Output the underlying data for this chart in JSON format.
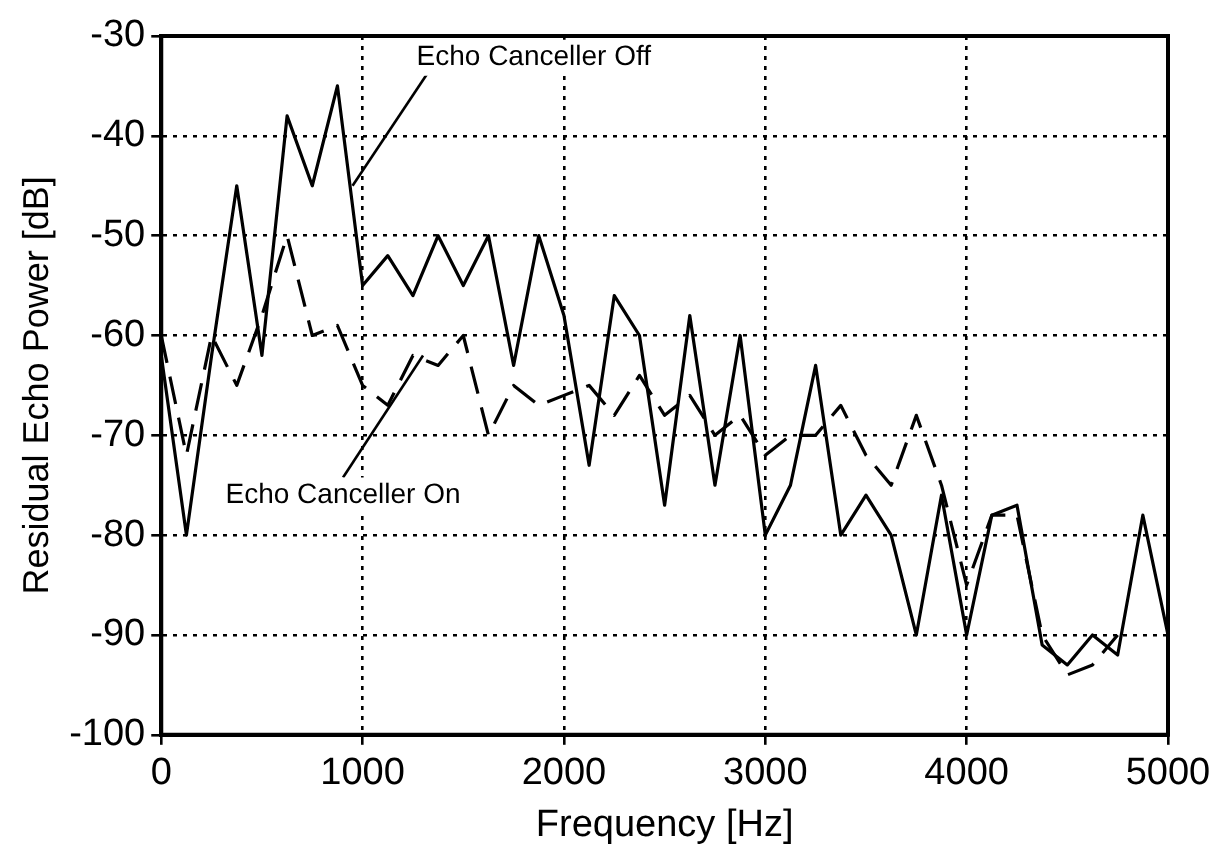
{
  "chart_data": {
    "type": "line",
    "xlabel": "Frequency [Hz]",
    "ylabel": "Residual Echo Power [dB]",
    "x": [
      0,
      125,
      250,
      375,
      500,
      625,
      750,
      875,
      1000,
      1125,
      1250,
      1375,
      1500,
      1625,
      1750,
      1875,
      2000,
      2125,
      2250,
      2375,
      2500,
      2625,
      2750,
      2875,
      3000,
      3125,
      3250,
      3375,
      3500,
      3625,
      3750,
      3875,
      4000,
      4125,
      4250,
      4375,
      4500,
      4625,
      4750,
      4875,
      5000
    ],
    "series": [
      {
        "color": "#000000",
        "line_style": "solid",
        "values": [
          -62,
          -80,
          -62,
          -45,
          -62,
          -38,
          -45,
          -35,
          -55,
          -52,
          -56,
          -50,
          -55,
          -50,
          -63,
          -50,
          -58,
          -73,
          -56,
          -60,
          -77,
          -58,
          -75,
          -60,
          -80,
          -75,
          -63,
          -80,
          -76,
          -80,
          -90,
          -76,
          -90,
          -78,
          -77,
          -91,
          -93,
          -90,
          -92,
          -78,
          -90
        ]
      },
      {
        "color": "#000000",
        "line_style": "dashed",
        "values": [
          -60,
          -72,
          -60,
          -65,
          -58,
          -50,
          -60,
          -59,
          -65,
          -67,
          -62,
          -63,
          -60,
          -70,
          -65,
          -67,
          -66,
          -65,
          -68,
          -64,
          -68,
          -66,
          -70,
          -68,
          -72,
          -70,
          -70,
          -67,
          -72,
          -75,
          -68,
          -75,
          -85,
          -78,
          -78,
          -90,
          -94,
          -93,
          -90,
          null,
          null
        ]
      }
    ],
    "annotations": [
      {
        "text": "Echo Canceller Off",
        "x": 950,
        "y": -45
      },
      {
        "text": "Echo Canceller On",
        "x": 1300,
        "y": -62
      }
    ],
    "xlim": [
      0,
      5000
    ],
    "xticks": [
      0,
      1000,
      2000,
      3000,
      4000,
      5000
    ],
    "ylim": [
      -100,
      -30
    ],
    "yticks": [
      -100,
      -90,
      -80,
      -70,
      -60,
      -50,
      -40,
      -30
    ],
    "grid": true,
    "legend": false,
    "marker": "none"
  }
}
